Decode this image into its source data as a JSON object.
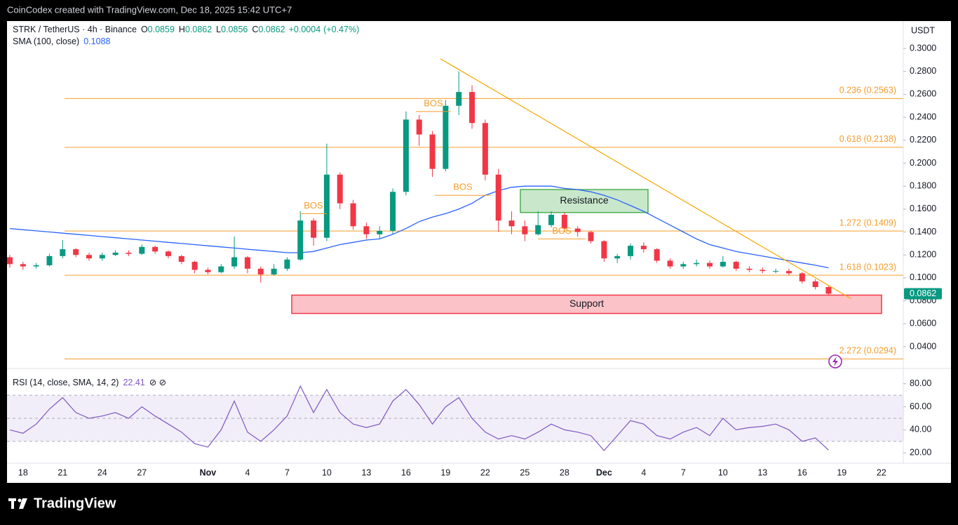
{
  "header": "CoinCodex created with TradingView.com, Dec 18, 2025 15:42 UTC+7",
  "watermark": "TradingView",
  "chart_data": [
    {
      "type": "candlestick",
      "title": "STRK / TetherUS · 4h · Binance",
      "quote": [
        {
          "label": "O",
          "value": 0.0859
        },
        {
          "label": "H",
          "value": 0.0862
        },
        {
          "label": "L",
          "value": 0.0856
        },
        {
          "label": "C",
          "value": 0.0862
        }
      ],
      "change": {
        "value": 0.0004,
        "label": "+0.0004"
      },
      "change_pct": {
        "value": 0.47,
        "label": "(+0.47%)"
      },
      "unit": "USDT",
      "last_price": 0.0862,
      "up_color": "#089981",
      "down_color": "#f23645",
      "categories": [
        null,
        "18",
        null,
        null,
        "21",
        null,
        null,
        "24",
        null,
        null,
        "27",
        null,
        null,
        null,
        null,
        "Nov",
        null,
        null,
        "4",
        null,
        null,
        "7",
        null,
        null,
        "10",
        null,
        null,
        "13",
        null,
        null,
        "16",
        null,
        null,
        "19",
        null,
        null,
        "22",
        null,
        null,
        "25",
        null,
        null,
        "28",
        null,
        null,
        "Dec",
        null,
        null,
        "4",
        null,
        null,
        "7",
        null,
        null,
        "10",
        null,
        null,
        "13",
        null,
        null,
        "16",
        null,
        null,
        "19",
        null,
        null,
        "22",
        null
      ],
      "open": [
        0.118,
        0.112,
        0.11,
        0.111,
        0.119,
        0.125,
        0.12,
        0.117,
        0.12,
        0.122,
        0.121,
        0.127,
        0.123,
        0.119,
        0.114,
        0.107,
        0.105,
        0.11,
        0.118,
        0.108,
        0.103,
        0.108,
        0.116,
        0.15,
        0.135,
        0.19,
        0.165,
        0.145,
        0.138,
        0.141,
        0.175,
        0.238,
        0.225,
        0.195,
        0.25,
        0.262,
        0.235,
        0.19,
        0.15,
        0.145,
        0.138,
        0.146,
        0.155,
        0.143,
        0.14,
        0.132,
        0.117,
        0.119,
        0.128,
        0.125,
        0.115,
        0.11,
        0.112,
        0.113,
        0.11,
        0.114,
        0.108,
        0.107,
        0.106,
        0.106,
        0.104,
        0.097,
        0.092,
        null,
        null,
        null,
        null,
        null
      ],
      "high": [
        0.12,
        0.114,
        0.113,
        0.121,
        0.133,
        0.126,
        0.122,
        0.122,
        0.124,
        0.124,
        0.129,
        0.128,
        0.124,
        0.12,
        0.115,
        0.109,
        0.112,
        0.136,
        0.119,
        0.11,
        0.112,
        0.118,
        0.158,
        0.152,
        0.217,
        0.192,
        0.168,
        0.148,
        0.145,
        0.178,
        0.245,
        0.242,
        0.228,
        0.255,
        0.28,
        0.268,
        0.238,
        0.195,
        0.158,
        0.15,
        0.158,
        0.158,
        0.157,
        0.145,
        0.141,
        0.133,
        0.121,
        0.13,
        0.131,
        0.126,
        0.117,
        0.114,
        0.116,
        0.115,
        0.119,
        0.115,
        0.11,
        0.109,
        0.108,
        0.108,
        0.105,
        0.099,
        0.093,
        null,
        null,
        null,
        null,
        null
      ],
      "low": [
        0.109,
        0.107,
        0.108,
        0.11,
        0.117,
        0.118,
        0.115,
        0.115,
        0.119,
        0.119,
        0.12,
        0.121,
        0.117,
        0.112,
        0.104,
        0.103,
        0.104,
        0.108,
        0.104,
        0.096,
        0.102,
        0.106,
        0.115,
        0.128,
        0.132,
        0.16,
        0.142,
        0.134,
        0.134,
        0.138,
        0.172,
        0.215,
        0.188,
        0.193,
        0.242,
        0.23,
        0.185,
        0.14,
        0.138,
        0.132,
        0.137,
        0.144,
        0.14,
        0.136,
        0.13,
        0.114,
        0.113,
        0.116,
        0.122,
        0.113,
        0.108,
        0.108,
        0.11,
        0.108,
        0.109,
        0.106,
        0.105,
        0.104,
        0.104,
        0.102,
        0.095,
        0.09,
        0.0855,
        null,
        null,
        null,
        null,
        null
      ],
      "close": [
        0.112,
        0.11,
        0.111,
        0.119,
        0.125,
        0.12,
        0.117,
        0.12,
        0.122,
        0.121,
        0.127,
        0.123,
        0.119,
        0.114,
        0.107,
        0.105,
        0.11,
        0.118,
        0.108,
        0.103,
        0.108,
        0.116,
        0.15,
        0.135,
        0.19,
        0.165,
        0.145,
        0.138,
        0.141,
        0.175,
        0.238,
        0.225,
        0.195,
        0.25,
        0.262,
        0.235,
        0.19,
        0.15,
        0.145,
        0.138,
        0.146,
        0.155,
        0.143,
        0.14,
        0.132,
        0.117,
        0.119,
        0.128,
        0.125,
        0.115,
        0.11,
        0.112,
        0.113,
        0.11,
        0.114,
        0.108,
        0.107,
        0.106,
        0.106,
        0.104,
        0.097,
        0.092,
        0.0862,
        null,
        null,
        null,
        null,
        null
      ],
      "series": [
        {
          "name": "SMA (100, close)",
          "color": "#2962ff",
          "last": 0.1088,
          "values": [
            0.143,
            0.142,
            0.141,
            0.14,
            0.139,
            0.138,
            0.137,
            0.136,
            0.135,
            0.134,
            0.133,
            0.132,
            0.131,
            0.13,
            0.129,
            0.128,
            0.127,
            0.126,
            0.125,
            0.124,
            0.123,
            0.122,
            0.122,
            0.123,
            0.126,
            0.129,
            0.131,
            0.133,
            0.134,
            0.138,
            0.143,
            0.149,
            0.153,
            0.156,
            0.16,
            0.165,
            0.172,
            0.176,
            0.179,
            0.18,
            0.18,
            0.18,
            0.178,
            0.177,
            0.175,
            0.172,
            0.168,
            0.163,
            0.158,
            0.152,
            0.146,
            0.14,
            0.134,
            0.129,
            0.126,
            0.123,
            0.121,
            0.119,
            0.117,
            0.115,
            0.113,
            0.111,
            0.1088,
            null,
            null,
            null,
            null,
            null
          ]
        }
      ],
      "ylim": [
        0.0241,
        0.3208
      ],
      "yticks": [
        {
          "value": 0.04,
          "label": "0.0400"
        },
        {
          "value": 0.06,
          "label": "0.0600"
        },
        {
          "value": 0.08,
          "label": "0.0800"
        },
        {
          "value": 0.1,
          "label": "0.1000"
        },
        {
          "value": 0.12,
          "label": "0.1200"
        },
        {
          "value": 0.14,
          "label": "0.1400"
        },
        {
          "value": 0.16,
          "label": "0.1600"
        },
        {
          "value": 0.18,
          "label": "0.1800"
        },
        {
          "value": 0.2,
          "label": "0.2000"
        },
        {
          "value": 0.22,
          "label": "0.2200"
        },
        {
          "value": 0.24,
          "label": "0.2400"
        },
        {
          "value": 0.26,
          "label": "0.2600"
        },
        {
          "value": 0.28,
          "label": "0.2800"
        },
        {
          "value": 0.3,
          "label": "0.3000"
        }
      ],
      "fib_levels": [
        {
          "label": "0.236 (0.2563)",
          "value": 0.2563
        },
        {
          "label": "0.618 (0.2138)",
          "value": 0.2138
        },
        {
          "label": "1.272 (0.1409)",
          "value": 0.1409
        },
        {
          "label": "1.618 (0.1023)",
          "value": 0.1023
        },
        {
          "label": "2.272 (0.0294)",
          "value": 0.0294
        }
      ],
      "fib_color": "#f59d2a",
      "zones": [
        {
          "label": "Resistance",
          "ylim": [
            0.157,
            0.177
          ],
          "color": "#4caf50"
        },
        {
          "label": "Support",
          "ylim": [
            0.069,
            0.085
          ],
          "color": "#f23645"
        }
      ],
      "bos": [
        {
          "label": "BOS",
          "value": 0.156
        },
        {
          "label": "BOS",
          "value": 0.245
        },
        {
          "label": "BOS",
          "value": 0.172
        },
        {
          "label": "BOS",
          "value": 0.134
        }
      ],
      "trendline": {
        "values": [
          0.291,
          0.082
        ],
        "color": "#f7a600"
      }
    },
    {
      "type": "line",
      "title": "RSI (14, close, SMA, 14, 2)",
      "series": [
        {
          "color": "#7e57c2",
          "last": 22.41,
          "values": [
            40,
            37,
            45,
            58,
            68,
            55,
            50,
            52,
            55,
            50,
            60,
            52,
            45,
            38,
            28,
            25,
            40,
            65,
            38,
            30,
            40,
            52,
            78,
            55,
            75,
            55,
            45,
            42,
            45,
            65,
            75,
            62,
            45,
            60,
            68,
            50,
            38,
            32,
            35,
            32,
            38,
            45,
            40,
            38,
            35,
            22,
            35,
            48,
            45,
            35,
            32,
            38,
            42,
            35,
            50,
            40,
            42,
            43,
            45,
            40,
            30,
            33,
            22.41,
            null,
            null,
            null,
            null,
            null
          ]
        }
      ],
      "band": [
        30,
        70
      ],
      "midline": 50,
      "ylim": [
        11,
        89
      ],
      "yticks": [
        {
          "value": 20,
          "label": "20.00"
        },
        {
          "value": 40,
          "label": "40.00"
        },
        {
          "value": 60,
          "label": "60.00"
        },
        {
          "value": 80,
          "label": "80.00"
        }
      ]
    }
  ]
}
